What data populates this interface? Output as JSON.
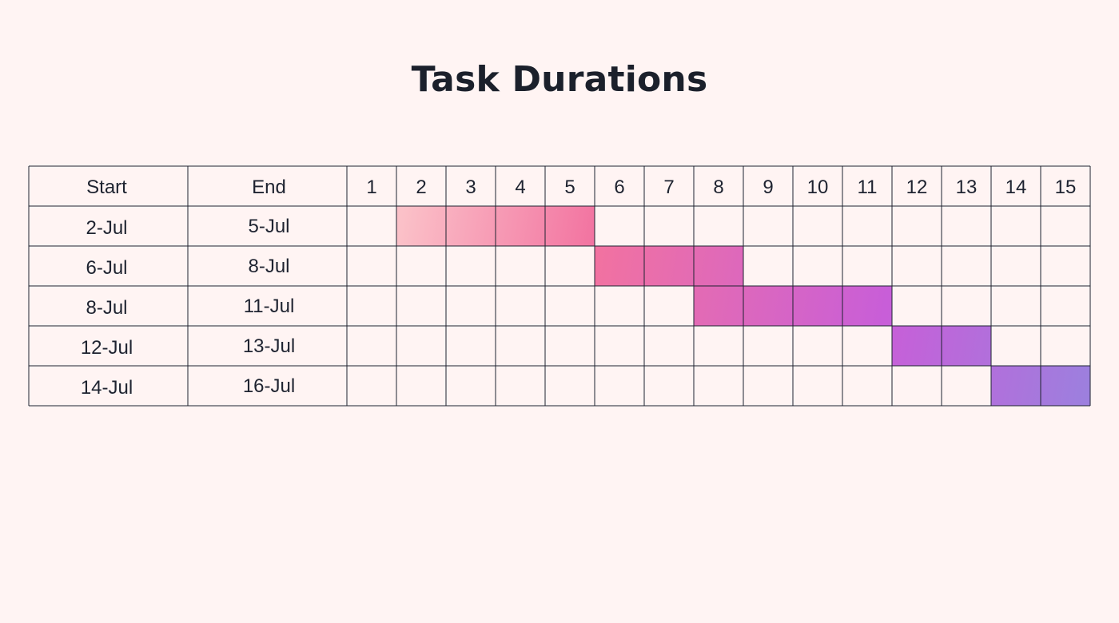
{
  "chart_data": {
    "type": "table",
    "title": "Task Durations",
    "columns": [
      "Start",
      "End",
      "1",
      "2",
      "3",
      "4",
      "5",
      "6",
      "7",
      "8",
      "9",
      "10",
      "11",
      "12",
      "13",
      "14",
      "15"
    ],
    "rows": [
      {
        "start": "2-Jul",
        "end": "5-Jul",
        "first_day": 2,
        "last_day": 5
      },
      {
        "start": "6-Jul",
        "end": "8-Jul",
        "first_day": 6,
        "last_day": 8
      },
      {
        "start": "8-Jul",
        "end": "11-Jul",
        "first_day": 8,
        "last_day": 11
      },
      {
        "start": "12-Jul",
        "end": "13-Jul",
        "first_day": 12,
        "last_day": 13
      },
      {
        "start": "14-Jul",
        "end": "16-Jul",
        "first_day": 14,
        "last_day": 16
      }
    ],
    "colors": {
      "gradient_start": "#fbc1c8",
      "gradient_mid": "#f272a0",
      "gradient_purple": "#c85ed8",
      "gradient_end": "#9d7fde",
      "grid_line": "#1e2330",
      "background": "#fff4f3"
    }
  }
}
